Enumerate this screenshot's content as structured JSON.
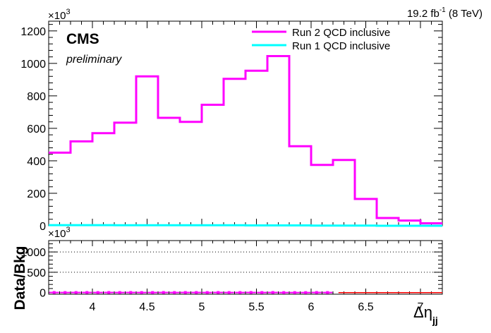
{
  "chart_data": [
    {
      "type": "line",
      "step": true,
      "panel": "main",
      "title": "",
      "header_right": {
        "lumi": "19.2 fb",
        "sup": "-1",
        "energy": " (8 TeV)"
      },
      "experiment": "CMS",
      "status": "preliminary",
      "y_multiplier_base": "×10",
      "y_multiplier_exp": "3",
      "xlabel_main": "Δη",
      "xlabel_sub": "jj",
      "xlim": [
        3.6,
        7.2
      ],
      "ylim": [
        0,
        1260
      ],
      "yticks": [
        0,
        200,
        400,
        600,
        800,
        1000,
        1200
      ],
      "ytick_labels": [
        "0",
        "200",
        "400",
        "600",
        "800",
        "1000",
        "1200"
      ],
      "xticks": [
        4,
        4.5,
        5,
        5.5,
        6,
        6.5,
        7
      ],
      "xtick_labels": [
        "4",
        "4.5",
        "5",
        "5.5",
        "6",
        "6.5",
        "7"
      ],
      "bin_edges": [
        3.6,
        3.8,
        4.0,
        4.2,
        4.4,
        4.6,
        4.8,
        5.0,
        5.2,
        5.4,
        5.6,
        5.8,
        6.0,
        6.2,
        6.4,
        6.6,
        6.8,
        7.0
      ],
      "legend_position": "top-right",
      "series": [
        {
          "name": "Run 2 QCD inclusive",
          "color": "#ff00ff",
          "values": [
            450,
            520,
            570,
            635,
            920,
            665,
            640,
            745,
            905,
            955,
            1045,
            490,
            375,
            405,
            165,
            48,
            32,
            15
          ]
        },
        {
          "name": "Run 1 QCD inclusive",
          "color": "#00ffff",
          "values": [
            4,
            4,
            4,
            3,
            3,
            3,
            3,
            3,
            3,
            2,
            2,
            2,
            1,
            1,
            1,
            0,
            0,
            0
          ]
        }
      ]
    },
    {
      "type": "scatter",
      "panel": "ratio",
      "ylabel": "Data/Bkg",
      "y_multiplier_base": "×10",
      "y_multiplier_exp": "3",
      "xlim": [
        3.6,
        7.2
      ],
      "ylim": [
        -40,
        1280
      ],
      "yticks": [
        0,
        500,
        1000
      ],
      "ytick_labels": [
        "0",
        "500",
        "1000"
      ],
      "reference_lines": [
        500,
        1000
      ],
      "marker_color": "#ff00ff",
      "x": [
        3.65,
        3.75,
        3.85,
        3.95,
        4.05,
        4.15,
        4.25,
        4.35,
        4.45,
        4.55,
        4.65,
        4.75,
        4.85,
        4.95,
        5.05,
        5.15,
        5.25,
        5.35,
        5.45,
        5.55,
        5.65,
        5.75,
        5.85,
        5.95,
        6.05,
        6.15,
        6.25,
        6.35,
        6.45,
        6.55,
        6.65,
        6.75,
        6.85,
        6.95,
        7.05,
        7.15
      ],
      "y": [
        2,
        1,
        2,
        2,
        1,
        2,
        1,
        2,
        1,
        1,
        2,
        1,
        2,
        2,
        1,
        2,
        1,
        1,
        2,
        1,
        2,
        0,
        0,
        0,
        2,
        1,
        2,
        0,
        0,
        0,
        0,
        0,
        0,
        0,
        0,
        0
      ],
      "overflow_line_color": "#ff0000",
      "overflow_from": 6.25
    }
  ]
}
